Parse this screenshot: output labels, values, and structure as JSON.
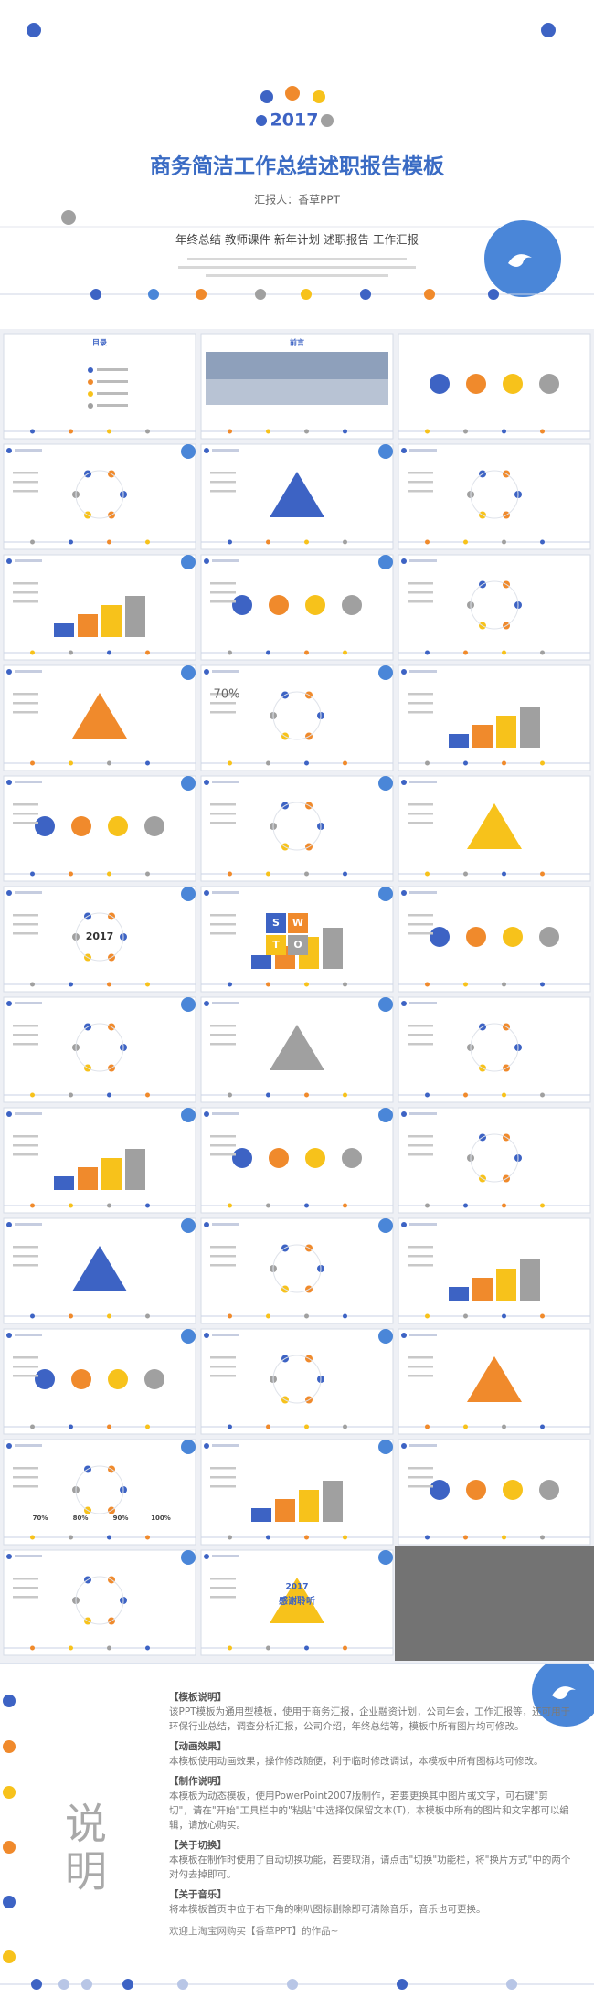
{
  "cover": {
    "year": "2017",
    "title": "商务简洁工作总结述职报告模板",
    "reporter": "汇报人：香草PPT",
    "keywords": "年终总结  教师课件  新年计划  述职报告  工作汇报"
  },
  "thumbnails": {
    "contents": "目录",
    "preface": "前言",
    "year": "2017",
    "percent": "70%",
    "swot": [
      "S",
      "W",
      "T",
      "O"
    ],
    "progress": [
      "70%",
      "80%",
      "90%",
      "100%"
    ],
    "thanks_year": "2017",
    "thanks": "感谢聆听"
  },
  "notes": {
    "heading": "说明",
    "sections": [
      {
        "title": "【模板说明】",
        "body": "该PPT模板为通用型模板，使用于商务汇报，企业融资计划，公司年会，工作汇报等，还可用于环保行业总结，调查分析汇报，公司介绍，年终总结等，模板中所有图片均可修改。"
      },
      {
        "title": "【动画效果】",
        "body": "本模板使用动画效果，操作修改随便，利于临时修改调试，本模板中所有图标均可修改。"
      },
      {
        "title": "【制作说明】",
        "body": "本模板为动态模板，使用PowerPoint2007版制作，若要更换其中图片或文字，可右键\"剪切\"，请在\"开始\"工具栏中的\"粘贴\"中选择仅保留文本(T)，本模板中所有的图片和文字都可以编辑，请放心购买。"
      },
      {
        "title": "【关于切换】",
        "body": "本模板在制作时使用了自动切换功能，若要取消，请点击\"切换\"功能栏，将\"换片方式\"中的两个对勾去掉即可。"
      },
      {
        "title": "【关于音乐】",
        "body": "将本模板首页中位于右下角的喇叭图标删除即可清除音乐，音乐也可更换。"
      }
    ],
    "footer": "欢迎上淘宝网购买【香草PPT】的作品~"
  }
}
